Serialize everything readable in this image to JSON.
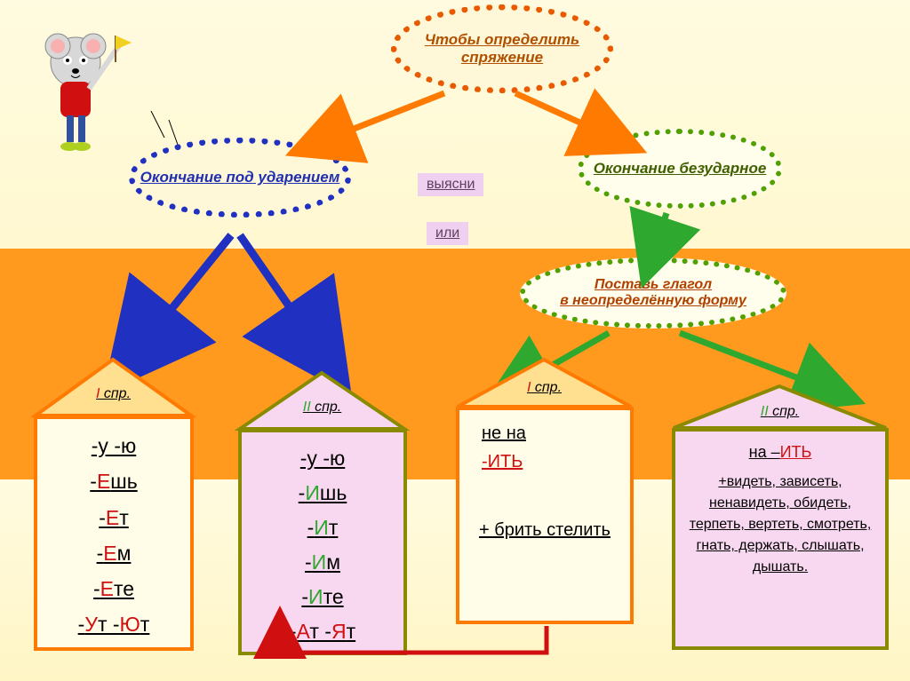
{
  "title": "Чтобы определить спряжение",
  "bubble_left": "Окончание под ударением",
  "bubble_right": "Окончание безударное",
  "tag1": "выясни",
  "tag2": "или",
  "bubble_inf_l1": "Поставь глагол",
  "bubble_inf_l2": " в неопределённую форму",
  "houses": {
    "h1": {
      "label_I": "I",
      "label_spr": " спр.",
      "lines": [
        "-у  -ю",
        "-Ешь",
        "-Ет",
        "-Ем",
        "-Ете",
        "-Ут  -Ют"
      ]
    },
    "h2": {
      "label_II": "II",
      "label_spr": " спр.",
      "lines": [
        "-у   -ю",
        "-Ишь",
        "-Ит",
        "-Им",
        "-Ите",
        "-Ат  -Ят"
      ]
    },
    "h3": {
      "label_I": "I",
      "label_spr": " спр.",
      "top1": "не на ",
      "top2": "-ИТЬ",
      "bot": "+ брить стелить"
    },
    "h4": {
      "label_II": "II",
      "label_spr": " спр.",
      "top": "на –ИТЬ",
      "plus": "+видеть, зависеть, ненавидеть, обидеть, терпеть, вертеть, смотреть, гнать, держать, слышать, дышать."
    }
  },
  "colors": {
    "orange": "#ff8a00",
    "darkorange": "#e85a00",
    "blue": "#2030c0",
    "green": "#2fa82f",
    "olive": "#8a8a00",
    "pink": "#f8d8f0",
    "cream": "#fffbe0",
    "red": "#d01010",
    "brown": "#a05020"
  }
}
